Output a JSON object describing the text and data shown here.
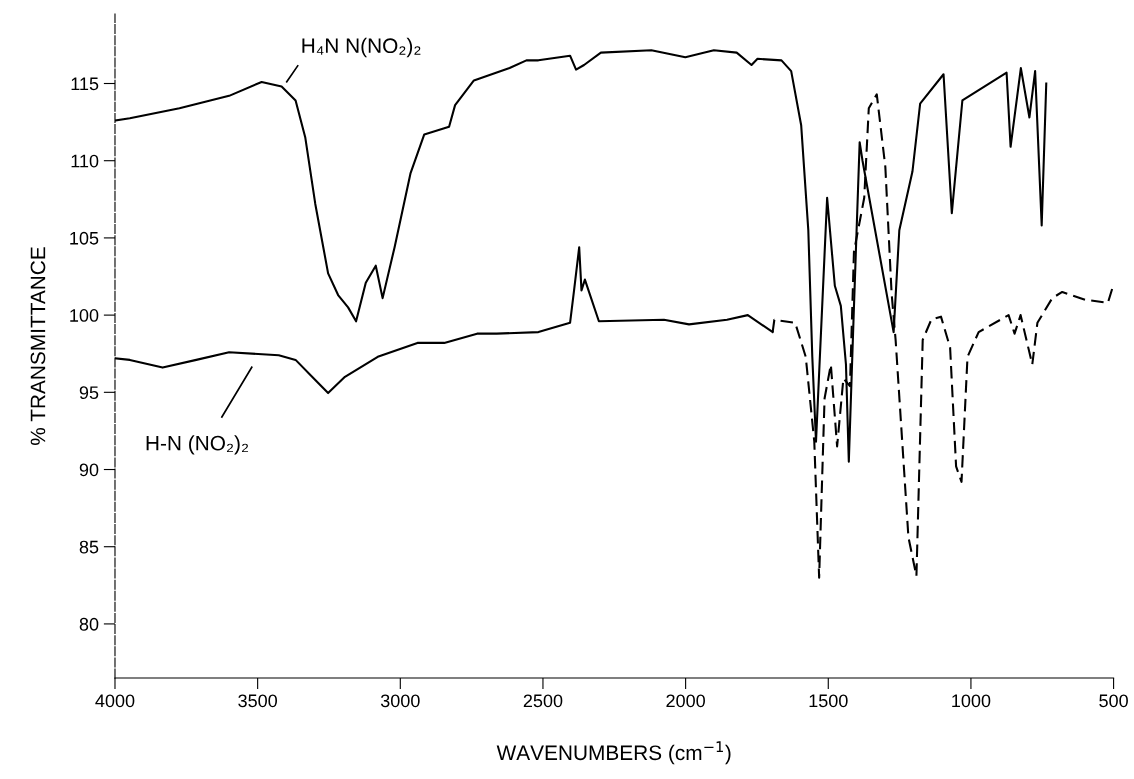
{
  "chart_data": {
    "type": "line",
    "xlabel": "WAVENUMBERS (cm$^{−1}$)",
    "ylabel": "% TRANSMITTANCE",
    "xlim": [
      4000,
      500
    ],
    "xticks": [
      4000,
      3500,
      3000,
      2500,
      2000,
      1500,
      1000,
      500
    ],
    "ylim": [
      76.5,
      119.5
    ],
    "yticks": [
      80,
      85,
      90,
      95,
      100,
      105,
      110,
      115
    ],
    "grid": false,
    "legend": false,
    "marker": "none",
    "series": [
      {
        "color": "#000000",
        "line_style": "solid",
        "x": [
          4000,
          3948,
          3774,
          3600,
          3486,
          3416,
          3367,
          3333,
          3298,
          3253,
          3218,
          3183,
          3155,
          3121,
          3086,
          3062,
          3020,
          2964,
          2916,
          2829,
          2808,
          2742,
          2617,
          2558,
          2516,
          2405,
          2384,
          2356,
          2297,
          2120,
          2001,
          1901,
          1821,
          1769,
          1748,
          1664,
          1630,
          1595,
          1570,
          1556,
          1543,
          1504,
          1477,
          1456,
          1438,
          1428,
          1411,
          1390,
          1380,
          1271,
          1251,
          1205,
          1178,
          1096,
          1067,
          1030,
          875,
          861,
          825,
          795,
          775,
          752,
          736
        ],
        "values": [
          112.6,
          112.75,
          113.4,
          114.2,
          115.1,
          114.8,
          113.9,
          111.5,
          107.2,
          102.7,
          101.3,
          100.5,
          99.6,
          102.1,
          103.2,
          101.1,
          104.4,
          109.2,
          111.7,
          112.2,
          113.6,
          115.2,
          116.0,
          116.5,
          116.5,
          116.8,
          115.9,
          116.2,
          117.0,
          117.15,
          116.7,
          117.15,
          117.0,
          116.2,
          116.6,
          116.5,
          115.8,
          112.3,
          105.5,
          97.3,
          91.8,
          107.6,
          101.9,
          100.6,
          96.8,
          90.5,
          100.0,
          111.2,
          110.0,
          98.9,
          105.5,
          109.3,
          113.7,
          115.6,
          106.6,
          113.9,
          115.7,
          110.9,
          116.0,
          112.8,
          115.8,
          105.8,
          115.0
        ]
      },
      {
        "color": "#000000",
        "line_style": "solid",
        "x": [
          4000,
          3948,
          3833,
          3715,
          3600,
          3426,
          3367,
          3298,
          3253,
          3194,
          3079,
          2940,
          2846,
          2731,
          2662,
          2516,
          2405,
          2391,
          2373,
          2365,
          2353,
          2304,
          2076,
          1988,
          1855,
          1782,
          1695
        ],
        "values": [
          97.2,
          97.1,
          96.6,
          97.1,
          97.6,
          97.4,
          97.1,
          95.8,
          94.95,
          96.0,
          97.3,
          98.2,
          98.2,
          98.8,
          98.8,
          98.9,
          99.5,
          101.6,
          104.4,
          101.6,
          102.3,
          99.6,
          99.7,
          99.4,
          99.7,
          100.0,
          98.9
        ]
      },
      {
        "color": "#000000",
        "line_style": "dashed",
        "x": [
          1695,
          1689,
          1616,
          1579,
          1549,
          1532,
          1513,
          1491,
          1469,
          1447,
          1424,
          1410,
          1374,
          1358,
          1330,
          1300,
          1278,
          1264,
          1219,
          1191,
          1169,
          1139,
          1105,
          1073,
          1052,
          1033,
          1012,
          973,
          868,
          847,
          826,
          785,
          767,
          715,
          680,
          600,
          520,
          500
        ],
        "values": [
          98.9,
          99.7,
          99.5,
          97.3,
          91.8,
          83.0,
          94.6,
          96.8,
          91.5,
          95.9,
          95.4,
          104.1,
          107.6,
          113.4,
          114.3,
          109.6,
          101.4,
          98.4,
          85.6,
          83.1,
          98.4,
          99.7,
          99.9,
          97.9,
          90.2,
          89.2,
          97.3,
          98.9,
          100.0,
          98.8,
          100.0,
          96.8,
          99.5,
          101.1,
          101.5,
          101.0,
          100.8,
          102.0
        ]
      }
    ],
    "annotations": [
      "H₄N N(NO₂)₂",
      "H-N (NO₂)₂"
    ]
  }
}
